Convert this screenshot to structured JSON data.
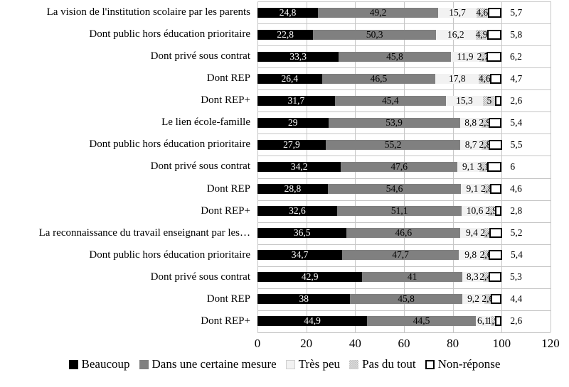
{
  "chart_data": {
    "type": "bar",
    "orientation": "horizontal",
    "stacked": true,
    "title": "",
    "xlabel": "",
    "ylabel": "",
    "x_axis": {
      "ticks": [
        "0",
        "20",
        "40",
        "60",
        "80",
        "100",
        "120"
      ],
      "min": 0,
      "max": 120,
      "grid": true
    },
    "legend_position": "bottom",
    "decimal_separator": ",",
    "categories": [
      "La vision de l'institution scolaire par les parents",
      "Dont public hors éducation prioritaire",
      "Dont privé sous contrat",
      "Dont REP",
      "Dont REP+",
      "Le lien école-famille",
      "Dont public hors éducation prioritaire",
      "Dont privé sous contrat",
      "Dont REP",
      "Dont REP+",
      "La reconnaissance du travail enseignant par les…",
      "Dont public hors éducation prioritaire",
      "Dont privé sous contrat",
      "Dont REP",
      "Dont REP+"
    ],
    "series": [
      {
        "name": "Beaucoup",
        "color": "#000000",
        "values": [
          "24,8",
          "22,8",
          "33,3",
          "26,4",
          "31,7",
          "29",
          "27,9",
          "34,2",
          "28,8",
          "32,6",
          "36,5",
          "34,7",
          "42,9",
          "38",
          "44,9"
        ]
      },
      {
        "name": "Dans une certaine mesure",
        "color": "#808080",
        "values": [
          "49,2",
          "50,3",
          "45,8",
          "46,5",
          "45,4",
          "53,9",
          "55,2",
          "47,6",
          "54,6",
          "51,1",
          "46,6",
          "47,7",
          "41",
          "45,8",
          "44,5"
        ]
      },
      {
        "name": "Très peu",
        "color": "#f2f2f2",
        "values": [
          "15,7",
          "16,2",
          "11,9",
          "17,8",
          "15,3",
          "8,8",
          "8,7",
          "9,1",
          "9,1",
          "10,6",
          "9,4",
          "9,8",
          "8,3",
          "9,2",
          "6,1"
        ]
      },
      {
        "name": "Pas du tout",
        "color": "#c9c9c9",
        "pattern": "checker",
        "values": [
          "4,6",
          "4,9",
          "2,7",
          "4,6",
          "5",
          "2,9",
          "2,8",
          "3,1",
          "2,8",
          "2,9",
          "2,4",
          "2,6",
          "2,4",
          "2,6",
          "1,9"
        ]
      },
      {
        "name": "Non-réponse",
        "color": "#ffffff",
        "border": "#000000",
        "values": [
          "5,7",
          "5,8",
          "6,2",
          "4,7",
          "2,6",
          "5,4",
          "5,5",
          "6",
          "4,6",
          "2,8",
          "5,2",
          "5,4",
          "5,3",
          "4,4",
          "2,6"
        ]
      }
    ],
    "colors": {
      "beaucoup": "#000000",
      "dans_une_certaine_mesure": "#808080",
      "tres_peu": "#f2f2f2",
      "pas_du_tout": "#c9c9c9",
      "non_reponse": "#ffffff",
      "grid": "#c6c6c6",
      "value_label_on_black": "#ffffff",
      "value_label": "#000000"
    }
  }
}
